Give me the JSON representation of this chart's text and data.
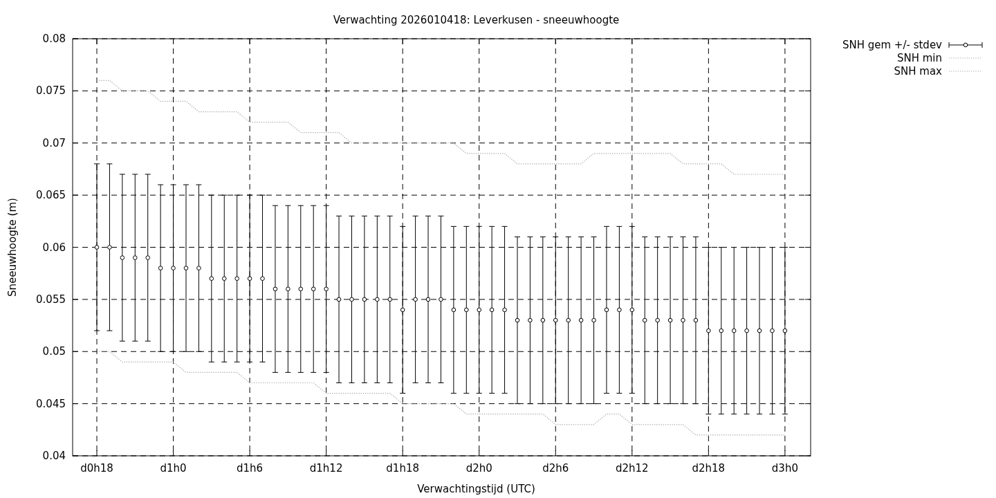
{
  "chart_data": {
    "type": "line",
    "title": "Verwachting 2026010418: Leverkusen - sneeuwhoogte",
    "xlabel": "Verwachtingstijd (UTC)",
    "ylabel": "Sneeuwhoogte (m)",
    "categories": [
      "d0h18",
      null,
      null,
      null,
      null,
      null,
      "d1h0",
      null,
      null,
      null,
      null,
      null,
      "d1h6",
      null,
      null,
      null,
      null,
      null,
      "d1h12",
      null,
      null,
      null,
      null,
      null,
      "d1h18",
      null,
      null,
      null,
      null,
      null,
      "d2h0",
      null,
      null,
      null,
      null,
      null,
      "d2h6",
      null,
      null,
      null,
      null,
      null,
      "d2h12",
      null,
      null,
      null,
      null,
      null,
      "d2h18",
      null,
      null,
      null,
      null,
      null,
      "d3h0"
    ],
    "ylim": [
      0.04,
      0.08
    ],
    "yticks": [
      0.04,
      0.045,
      0.05,
      0.055,
      0.06,
      0.065,
      0.07,
      0.075,
      0.08
    ],
    "grid": true,
    "legend": "top right",
    "series": [
      {
        "name": "SNH gem +/- stdev",
        "type": "scatter",
        "color": "#000000",
        "marker": "circle",
        "errors": [
          0.008,
          0.008,
          0.008,
          0.008,
          0.008,
          0.008,
          0.008,
          0.008,
          0.008,
          0.008,
          0.008,
          0.008,
          0.008,
          0.008,
          0.008,
          0.008,
          0.008,
          0.008,
          0.008,
          0.008,
          0.008,
          0.008,
          0.008,
          0.008,
          0.008,
          0.008,
          0.008,
          0.008,
          0.008,
          0.008,
          0.008,
          0.008,
          0.008,
          0.008,
          0.008,
          0.008,
          0.008,
          0.008,
          0.008,
          0.008,
          0.008,
          0.008,
          0.008,
          0.008,
          0.008,
          0.008,
          0.008,
          0.008,
          0.008,
          0.008,
          0.008,
          0.008,
          0.008,
          0.008,
          0.008
        ],
        "values": [
          0.06,
          0.06,
          0.059,
          0.059,
          0.059,
          0.058,
          0.058,
          0.058,
          0.058,
          0.057,
          0.057,
          0.057,
          0.057,
          0.057,
          0.056,
          0.056,
          0.056,
          0.056,
          0.056,
          0.055,
          0.055,
          0.055,
          0.055,
          0.055,
          0.054,
          0.055,
          0.055,
          0.055,
          0.054,
          0.054,
          0.054,
          0.054,
          0.054,
          0.053,
          0.053,
          0.053,
          0.053,
          0.053,
          0.053,
          0.053,
          0.054,
          0.054,
          0.054,
          0.053,
          0.053,
          0.053,
          0.053,
          0.053,
          0.052,
          0.052,
          0.052,
          0.052,
          0.052,
          0.052,
          0.052
        ]
      },
      {
        "name": "SNH min",
        "color": "#a0a0a0",
        "marker": "none",
        "line_style": "dotted",
        "values": [
          0.05,
          0.05,
          0.049,
          0.049,
          0.049,
          0.049,
          0.049,
          0.048,
          0.048,
          0.048,
          0.048,
          0.048,
          0.047,
          0.047,
          0.047,
          0.047,
          0.047,
          0.047,
          0.046,
          0.046,
          0.046,
          0.046,
          0.046,
          0.046,
          0.045,
          0.045,
          0.045,
          0.045,
          0.045,
          0.044,
          0.044,
          0.044,
          0.044,
          0.044,
          0.044,
          0.044,
          0.043,
          0.043,
          0.043,
          0.043,
          0.044,
          0.044,
          0.043,
          0.043,
          0.043,
          0.043,
          0.043,
          0.042,
          0.042,
          0.042,
          0.042,
          0.042,
          0.042,
          0.042,
          0.042
        ]
      },
      {
        "name": "SNH max",
        "color": "#a0a0a0",
        "marker": "none",
        "line_style": "dotted",
        "values": [
          0.076,
          0.076,
          0.075,
          0.075,
          0.075,
          0.074,
          0.074,
          0.074,
          0.073,
          0.073,
          0.073,
          0.073,
          0.072,
          0.072,
          0.072,
          0.072,
          0.071,
          0.071,
          0.071,
          0.071,
          0.07,
          0.07,
          0.07,
          0.07,
          0.07,
          0.07,
          0.07,
          0.07,
          0.07,
          0.069,
          0.069,
          0.069,
          0.069,
          0.068,
          0.068,
          0.068,
          0.068,
          0.068,
          0.068,
          0.069,
          0.069,
          0.069,
          0.069,
          0.069,
          0.069,
          0.069,
          0.068,
          0.068,
          0.068,
          0.068,
          0.067,
          0.067,
          0.067,
          0.067,
          0.067
        ]
      }
    ]
  }
}
